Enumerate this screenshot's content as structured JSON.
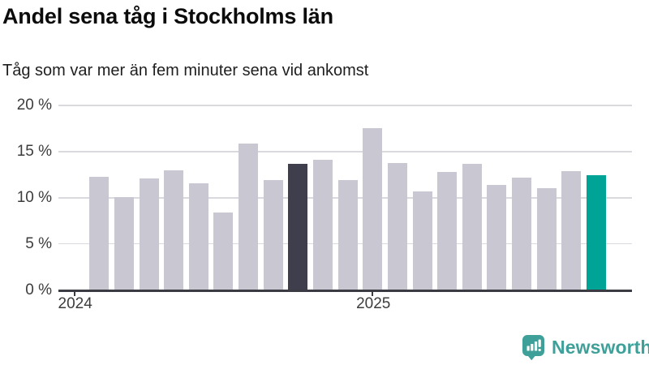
{
  "header": {
    "title": "Andel sena tåg i Stockholms län",
    "subtitle": "Tåg som var mer än fem minuter sena vid ankomst"
  },
  "chart_data": {
    "type": "bar",
    "title": "Andel sena tåg i Stockholms län",
    "subtitle": "Tåg som var mer än fem minuter sena vid ankomst",
    "unit": "%",
    "categories": [
      "2024-02",
      "2024-03",
      "2024-04",
      "2024-05",
      "2024-06",
      "2024-07",
      "2024-08",
      "2024-09",
      "2024-10",
      "2024-11",
      "2024-12",
      "2025-01",
      "2025-02",
      "2025-03",
      "2025-04",
      "2025-05",
      "2025-06",
      "2025-07",
      "2025-08",
      "2025-09",
      "2025-10"
    ],
    "values": [
      12.3,
      10.1,
      12.1,
      13.0,
      11.6,
      8.4,
      15.9,
      11.9,
      13.7,
      14.1,
      11.9,
      17.5,
      13.8,
      10.7,
      12.8,
      13.7,
      11.4,
      12.2,
      11.0,
      12.9,
      12.4
    ],
    "highlight_dark_index": 8,
    "highlight_teal_index": 20,
    "ylim": [
      0,
      20
    ],
    "yticks": [
      {
        "value": 0,
        "label": "0 %"
      },
      {
        "value": 5,
        "label": "5 %"
      },
      {
        "value": 10,
        "label": "10 %"
      },
      {
        "value": 15,
        "label": "15 %"
      },
      {
        "value": 20,
        "label": "20 %"
      }
    ],
    "xticks": [
      {
        "label": "2024",
        "month": 0
      },
      {
        "label": "2025",
        "month": 12
      }
    ],
    "grid": true,
    "legend": false,
    "colors": {
      "bar_default": "#c9c8d2",
      "bar_dark": "#3f3e4c",
      "bar_teal": "#00a496",
      "gridline": "#d9d9de",
      "axis_line": "#3b3b43",
      "axis_text": "#3c3c3c"
    }
  },
  "footer": {
    "logo_icon": "newsworthy-bubble-barchart-icon",
    "logo_text": "Newsworthy",
    "logo_color": "#3fa09a"
  }
}
